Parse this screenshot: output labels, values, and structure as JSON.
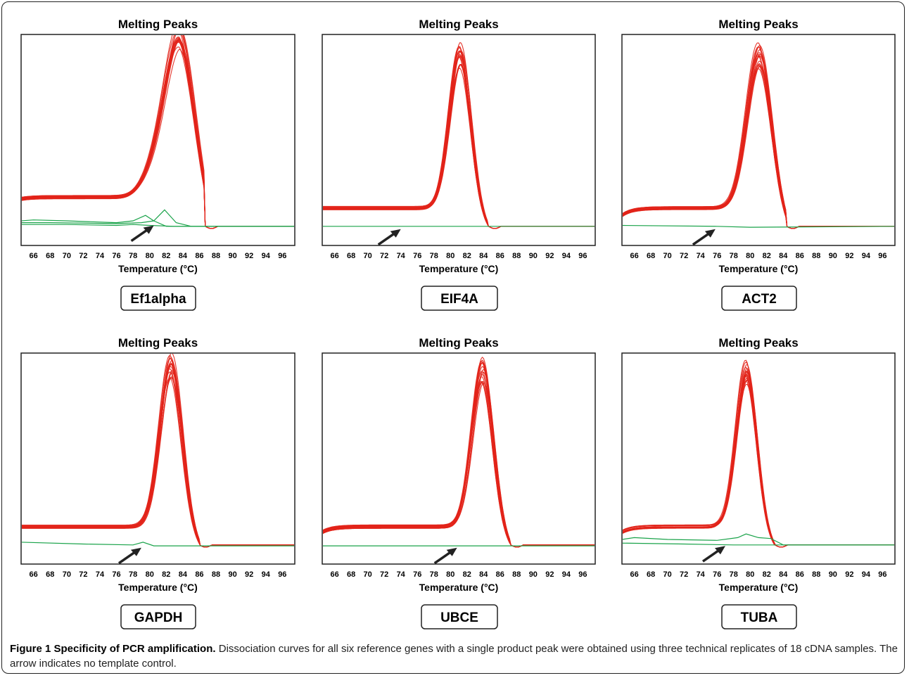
{
  "caption": {
    "label": "Figure 1 Specificity of PCR amplification.",
    "text": " Dissociation curves for all six reference genes with a single product peak were obtained using three technical replicates of 18 cDNA samples. The arrow indicates no template control."
  },
  "colors": {
    "samples": "#e2231a",
    "ntc": "#1aa34a",
    "arrow": "#222222",
    "frame": "#222222"
  },
  "chart_data": [
    {
      "type": "line",
      "title": "Melting Peaks",
      "gene": "Ef1alpha",
      "xlabel": "Temperature (°C)",
      "xlim": [
        64.5,
        97.5
      ],
      "ylim": [
        0,
        1
      ],
      "xticks": [
        66,
        68,
        70,
        72,
        74,
        76,
        78,
        80,
        82,
        84,
        86,
        88,
        90,
        92,
        94,
        96
      ],
      "grid": false,
      "samples": {
        "base": 0.17,
        "hump": 0.07,
        "plateau": 0.18,
        "peak_temp": 83.6,
        "peak_height": 0.96,
        "width": 1.9,
        "end_temp": 86.7,
        "n_curves": 18
      },
      "ntc": [
        [
          [
            64.5,
            0.05
          ],
          [
            66,
            0.055
          ],
          [
            70,
            0.05
          ],
          [
            76,
            0.04
          ],
          [
            78,
            0.05
          ],
          [
            79.5,
            0.08
          ],
          [
            80.5,
            0.05
          ],
          [
            82,
            0.02
          ],
          [
            84,
            0.02
          ],
          [
            97.5,
            0.02
          ]
        ],
        [
          [
            64.5,
            0.04
          ],
          [
            68,
            0.04
          ],
          [
            76,
            0.035
          ],
          [
            79,
            0.04
          ],
          [
            80.5,
            0.05
          ],
          [
            81.8,
            0.11
          ],
          [
            83.2,
            0.04
          ],
          [
            85,
            0.02
          ],
          [
            97.5,
            0.02
          ]
        ],
        [
          [
            64.5,
            0.03
          ],
          [
            70,
            0.03
          ],
          [
            76,
            0.025
          ],
          [
            78,
            0.03
          ],
          [
            80,
            0.025
          ],
          [
            83,
            0.02
          ],
          [
            97.5,
            0.02
          ]
        ]
      ],
      "arrow_at": [
        80.5,
        0.04
      ]
    },
    {
      "type": "line",
      "title": "Melting Peaks",
      "gene": "EIF4A",
      "xlabel": "Temperature (°C)",
      "xlim": [
        64.5,
        97.5
      ],
      "ylim": [
        0,
        1
      ],
      "xticks": [
        66,
        68,
        70,
        72,
        74,
        76,
        78,
        80,
        82,
        84,
        86,
        88,
        90,
        92,
        94,
        96
      ],
      "grid": false,
      "samples": {
        "base": 0.12,
        "hump": 0.0,
        "plateau": 0.12,
        "peak_temp": 81.2,
        "peak_height": 0.91,
        "width": 1.3,
        "end_temp": 84.6,
        "n_curves": 18
      },
      "ntc": [
        [
          [
            64.5,
            0.02
          ],
          [
            80,
            0.02
          ],
          [
            97.5,
            0.02
          ]
        ]
      ],
      "arrow_at": [
        74.0,
        0.02
      ]
    },
    {
      "type": "line",
      "title": "Melting Peaks",
      "gene": "ACT2",
      "xlabel": "Temperature (°C)",
      "xlim": [
        64.5,
        97.5
      ],
      "ylim": [
        0,
        1
      ],
      "xticks": [
        66,
        68,
        70,
        72,
        74,
        76,
        78,
        80,
        82,
        84,
        86,
        88,
        90,
        92,
        94,
        96
      ],
      "grid": false,
      "samples": {
        "base": 0.08,
        "hump": 0.0,
        "plateau": 0.12,
        "peak_temp": 81.1,
        "peak_height": 0.9,
        "width": 1.5,
        "end_temp": 84.4,
        "n_curves": 18
      },
      "ntc": [
        [
          [
            64.5,
            0.025
          ],
          [
            76,
            0.02
          ],
          [
            80,
            0.015
          ],
          [
            97.5,
            0.02
          ]
        ]
      ],
      "arrow_at": [
        75.8,
        0.02
      ]
    },
    {
      "type": "line",
      "title": "Melting Peaks",
      "gene": "GAPDH",
      "xlabel": "Temperature (°C)",
      "xlim": [
        64.5,
        97.5
      ],
      "ylim": [
        0,
        1
      ],
      "xticks": [
        66,
        68,
        70,
        72,
        74,
        76,
        78,
        80,
        82,
        84,
        86,
        88,
        90,
        92,
        94,
        96
      ],
      "grid": false,
      "samples": {
        "base": 0.12,
        "hump": 0.0,
        "plateau": 0.12,
        "peak_temp": 82.6,
        "peak_height": 0.96,
        "width": 1.35,
        "end_temp": 86.0,
        "n_curves": 18
      },
      "ntc": [
        [
          [
            64.5,
            0.035
          ],
          [
            72,
            0.025
          ],
          [
            78,
            0.02
          ],
          [
            79.2,
            0.035
          ],
          [
            80.5,
            0.015
          ],
          [
            84,
            0.015
          ],
          [
            97.5,
            0.015
          ]
        ]
      ],
      "arrow_at": [
        79.0,
        0.02
      ]
    },
    {
      "type": "line",
      "title": "Melting Peaks",
      "gene": "UBCE",
      "xlabel": "Temperature (°C)",
      "xlim": [
        64.5,
        97.5
      ],
      "ylim": [
        0,
        1
      ],
      "xticks": [
        66,
        68,
        70,
        72,
        74,
        76,
        78,
        80,
        82,
        84,
        86,
        88,
        90,
        92,
        94,
        96
      ],
      "grid": false,
      "samples": {
        "base": 0.09,
        "hump": 0.0,
        "plateau": 0.12,
        "peak_temp": 83.9,
        "peak_height": 0.92,
        "width": 1.3,
        "end_temp": 87.3,
        "n_curves": 18
      },
      "ntc": [
        [
          [
            64.5,
            0.015
          ],
          [
            97.5,
            0.015
          ]
        ]
      ],
      "arrow_at": [
        80.8,
        0.02
      ]
    },
    {
      "type": "line",
      "title": "Melting Peaks",
      "gene": "TUBA",
      "xlabel": "Temperature (°C)",
      "xlim": [
        64.5,
        97.5
      ],
      "ylim": [
        0,
        1
      ],
      "xticks": [
        66,
        68,
        70,
        72,
        74,
        76,
        78,
        80,
        82,
        84,
        86,
        88,
        90,
        92,
        94,
        96
      ],
      "grid": false,
      "samples": {
        "base": 0.09,
        "hump": 0.0,
        "plateau": 0.12,
        "peak_temp": 79.6,
        "peak_height": 0.92,
        "width": 1.25,
        "end_temp": 83.0,
        "n_curves": 18
      },
      "ntc": [
        [
          [
            64.5,
            0.05
          ],
          [
            66,
            0.06
          ],
          [
            70,
            0.05
          ],
          [
            76,
            0.045
          ],
          [
            78.5,
            0.06
          ],
          [
            79.5,
            0.08
          ],
          [
            81,
            0.06
          ],
          [
            82.5,
            0.055
          ],
          [
            84,
            0.02
          ],
          [
            97.5,
            0.02
          ]
        ],
        [
          [
            64.5,
            0.03
          ],
          [
            72,
            0.025
          ],
          [
            78,
            0.02
          ],
          [
            80,
            0.02
          ],
          [
            97.5,
            0.02
          ]
        ]
      ],
      "arrow_at": [
        77.0,
        0.03
      ]
    }
  ]
}
